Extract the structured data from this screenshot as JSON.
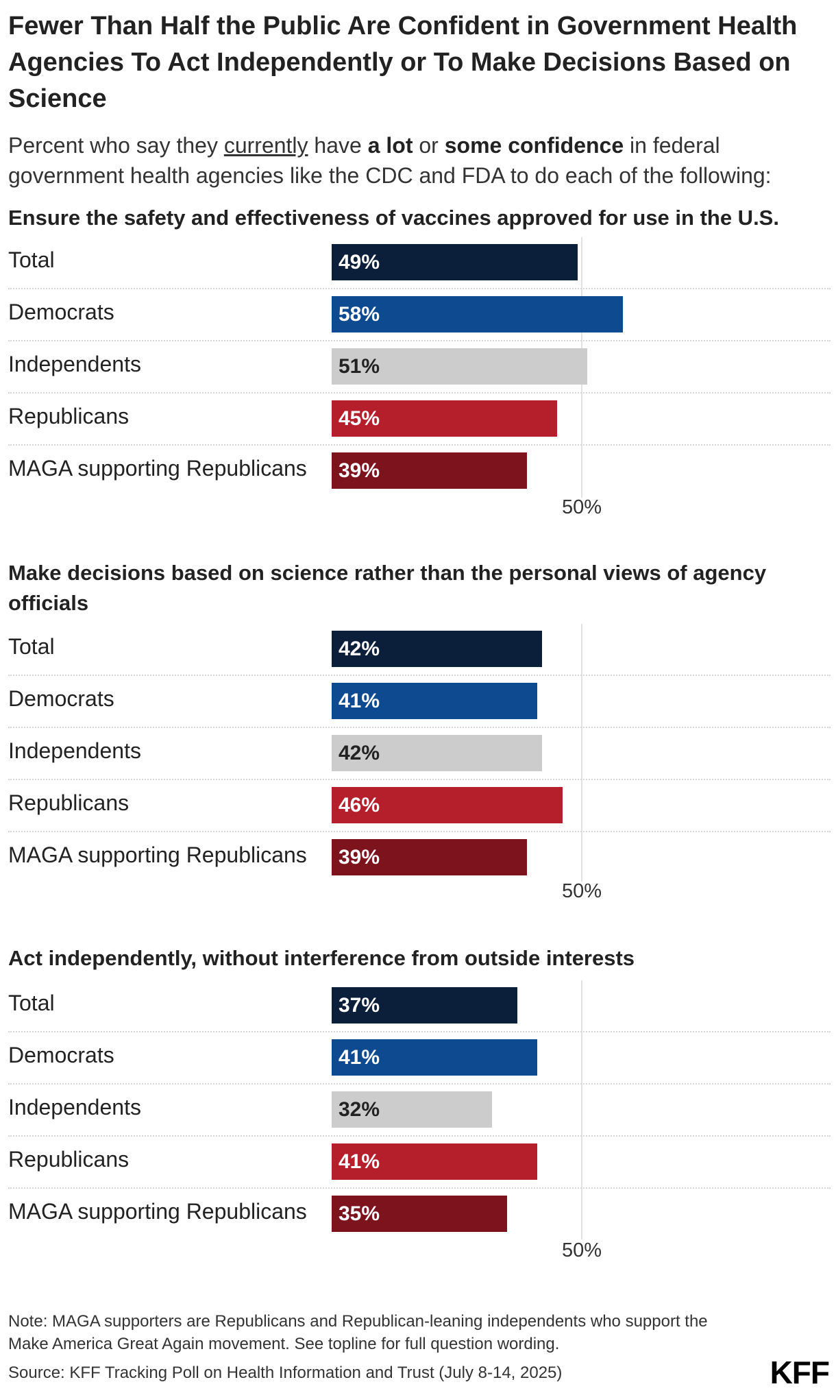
{
  "title": "Fewer Than Half the Public Are Confident in Government Health Agencies To Act Independently or To Make Decisions Based on Science",
  "subtitle": {
    "part1": "Percent who say they ",
    "currently": "currently",
    "part2": " have ",
    "a_lot": "a lot",
    "part3": " or ",
    "some_confidence": "some confidence",
    "part4": " in federal government health agencies like the CDC and FDA to do each of the following:"
  },
  "colors": {
    "Total": "#0b1f3a",
    "Democrats": "#0d4a8f",
    "Independents": "#cccccc",
    "Republicans": "#b51f2c",
    "MAGA supporting Republicans": "#7d131d",
    "label_on_dark": "#ffffff",
    "label_on_light": "#222222"
  },
  "chart_data": [
    {
      "type": "bar",
      "title": "Ensure the safety and effectiveness of vaccines approved for use in the U.S.",
      "categories": [
        "Total",
        "Democrats",
        "Independents",
        "Republicans",
        "MAGA supporting Republicans"
      ],
      "values": [
        49,
        58,
        51,
        45,
        39
      ],
      "value_labels": [
        "49%",
        "58%",
        "51%",
        "45%",
        "39%"
      ],
      "gridline_value": 50,
      "gridline_label": "50%",
      "xlim": [
        0,
        100
      ]
    },
    {
      "type": "bar",
      "title": "Make decisions based on science rather than the personal views of agency officials",
      "categories": [
        "Total",
        "Democrats",
        "Independents",
        "Republicans",
        "MAGA supporting Republicans"
      ],
      "values": [
        42,
        41,
        42,
        46,
        39
      ],
      "value_labels": [
        "42%",
        "41%",
        "42%",
        "46%",
        "39%"
      ],
      "gridline_value": 50,
      "gridline_label": "50%",
      "xlim": [
        0,
        100
      ]
    },
    {
      "type": "bar",
      "title": "Act independently, without interference from outside interests",
      "categories": [
        "Total",
        "Democrats",
        "Independents",
        "Republicans",
        "MAGA supporting Republicans"
      ],
      "values": [
        37,
        41,
        32,
        41,
        35
      ],
      "value_labels": [
        "37%",
        "41%",
        "32%",
        "41%",
        "35%"
      ],
      "gridline_value": 50,
      "gridline_label": "50%",
      "xlim": [
        0,
        100
      ]
    }
  ],
  "note": "Note: MAGA supporters are Republicans and Republican-leaning independents who support the Make America Great Again movement. See topline for full question wording.",
  "source": "Source: KFF Tracking Poll on Health Information and Trust (July 8-14, 2025)",
  "logo": "KFF"
}
